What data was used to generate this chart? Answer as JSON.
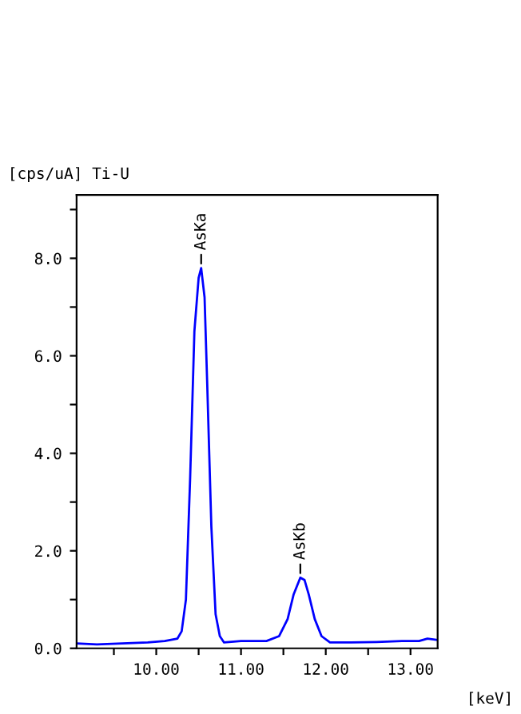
{
  "chart_data": {
    "type": "line",
    "ylabel": "[cps/uA] Ti-U",
    "xlabel": "[keV]",
    "x": [
      9.06,
      9.3,
      9.6,
      9.9,
      10.1,
      10.25,
      10.3,
      10.35,
      10.4,
      10.45,
      10.5,
      10.53,
      10.57,
      10.6,
      10.65,
      10.7,
      10.75,
      10.8,
      11.0,
      11.3,
      11.45,
      11.55,
      11.62,
      11.7,
      11.75,
      11.8,
      11.87,
      11.95,
      12.05,
      12.3,
      12.6,
      12.9,
      13.1,
      13.2,
      13.32
    ],
    "series": [
      {
        "color": "#0000ff",
        "values": [
          0.1,
          0.08,
          0.1,
          0.12,
          0.15,
          0.2,
          0.35,
          1.0,
          3.5,
          6.5,
          7.6,
          7.8,
          7.2,
          5.5,
          2.5,
          0.7,
          0.25,
          0.12,
          0.15,
          0.15,
          0.25,
          0.6,
          1.1,
          1.45,
          1.4,
          1.1,
          0.6,
          0.25,
          0.12,
          0.12,
          0.13,
          0.15,
          0.15,
          0.2,
          0.17
        ]
      }
    ],
    "annotations": [
      {
        "text": "AsKa",
        "x": 10.53,
        "y": 7.8
      },
      {
        "text": "AsKb",
        "x": 11.7,
        "y": 1.45
      }
    ],
    "xlim": [
      9.06,
      13.32
    ],
    "ylim": [
      0,
      9.3
    ],
    "xticks": [
      {
        "value": 9.5,
        "label": null
      },
      {
        "value": 10,
        "label": "10.00"
      },
      {
        "value": 10.5,
        "label": null
      },
      {
        "value": 11,
        "label": "11.00"
      },
      {
        "value": 11.5,
        "label": null
      },
      {
        "value": 12,
        "label": "12.00"
      },
      {
        "value": 12.5,
        "label": null
      },
      {
        "value": 13,
        "label": "13.00"
      }
    ],
    "yticks": [
      {
        "value": 0,
        "label": "0.0"
      },
      {
        "value": 1,
        "label": null
      },
      {
        "value": 2,
        "label": "2.0"
      },
      {
        "value": 3,
        "label": null
      },
      {
        "value": 4,
        "label": "4.0"
      },
      {
        "value": 5,
        "label": null
      },
      {
        "value": 6,
        "label": "6.0"
      },
      {
        "value": 7,
        "label": null
      },
      {
        "value": 8,
        "label": "8.0"
      },
      {
        "value": 9,
        "label": null
      }
    ],
    "grid": false,
    "legend": false
  }
}
